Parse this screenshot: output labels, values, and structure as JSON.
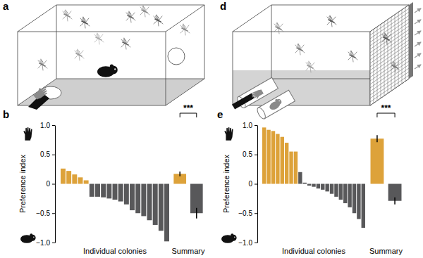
{
  "chart_data": [
    {
      "type": "bar",
      "panel": "b",
      "y_label": "Preference index",
      "x_label": "Individual colonies",
      "categories": [
        null,
        null,
        null,
        null,
        null,
        null,
        null,
        null,
        null,
        null,
        null,
        null,
        null,
        null,
        null,
        null,
        null,
        null,
        null
      ],
      "values": [
        0.26,
        0.22,
        0.16,
        0.11,
        0.06,
        -0.22,
        -0.22,
        -0.23,
        -0.25,
        -0.27,
        -0.3,
        -0.35,
        -0.45,
        -0.5,
        -0.55,
        -0.62,
        -0.7,
        -0.8,
        -0.98
      ],
      "colors": [
        "#dda23a",
        "#dda23a",
        "#dda23a",
        "#dda23a",
        "#dda23a",
        "#58585a",
        "#58585a",
        "#58585a",
        "#58585a",
        "#58585a",
        "#58585a",
        "#58585a",
        "#58585a",
        "#58585a",
        "#58585a",
        "#58585a",
        "#58585a",
        "#58585a",
        "#58585a"
      ],
      "ylim": [
        -1,
        1
      ],
      "yticks": [
        {
          "value": -1,
          "label": "−1.0"
        },
        {
          "value": -0.5,
          "label": "−0.5"
        },
        0,
        {
          "value": 0.5,
          "label": "0.5"
        },
        {
          "value": 1,
          "label": "1.0"
        }
      ],
      "summary": {
        "label": "Summary",
        "values": [
          0.17,
          -0.5
        ],
        "errors": [
          0.04,
          0.09
        ],
        "colors": [
          "#dda23a",
          "#58585a"
        ],
        "significance": "***"
      }
    },
    {
      "type": "bar",
      "panel": "e",
      "y_label": "Preference index",
      "x_label": "Individual colonies",
      "categories": [
        null,
        null,
        null,
        null,
        null,
        null,
        null,
        null,
        null,
        null,
        null,
        null,
        null,
        null,
        null,
        null,
        null,
        null,
        null,
        null,
        null,
        null,
        null
      ],
      "values": [
        0.96,
        0.92,
        0.9,
        0.85,
        0.8,
        0.7,
        0.55,
        0.55,
        0.2,
        0.02,
        -0.03,
        -0.05,
        -0.08,
        -0.1,
        -0.13,
        -0.17,
        -0.22,
        -0.27,
        -0.33,
        -0.4,
        -0.5,
        -0.6,
        -0.75
      ],
      "colors": [
        "#dda23a",
        "#dda23a",
        "#dda23a",
        "#dda23a",
        "#dda23a",
        "#dda23a",
        "#dda23a",
        "#dda23a",
        "#58585a",
        "#58585a",
        "#58585a",
        "#58585a",
        "#58585a",
        "#58585a",
        "#58585a",
        "#58585a",
        "#58585a",
        "#58585a",
        "#58585a",
        "#58585a",
        "#58585a",
        "#58585a",
        "#58585a"
      ],
      "ylim": [
        -1,
        1
      ],
      "yticks": [
        {
          "value": -1,
          "label": "−1.0"
        },
        {
          "value": -0.5,
          "label": "−0.5"
        },
        0,
        {
          "value": 0.5,
          "label": "0.5"
        },
        {
          "value": 1,
          "label": "1.0"
        }
      ],
      "summary": {
        "label": "Summary",
        "values": [
          0.77,
          -0.29
        ],
        "errors": [
          0.06,
          0.06
        ],
        "colors": [
          "#dda23a",
          "#58585a"
        ],
        "significance": "***"
      }
    }
  ],
  "diagrams": [
    {
      "panel": "a"
    },
    {
      "panel": "d"
    }
  ]
}
